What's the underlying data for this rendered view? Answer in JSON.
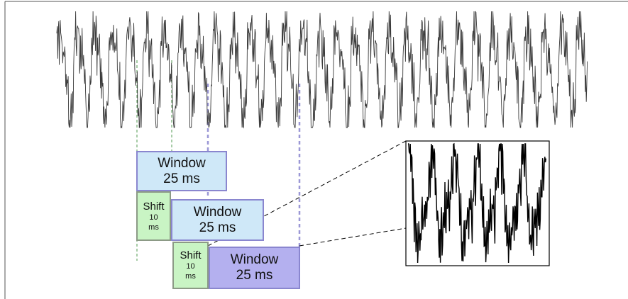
{
  "diagram": {
    "windows": [
      {
        "line1": "Window",
        "line2": "25 ms"
      },
      {
        "line1": "Window",
        "line2": "25 ms"
      },
      {
        "line1": "Window",
        "line2": "25 ms"
      }
    ],
    "shifts": [
      {
        "line1": "Shift",
        "line2": "10",
        "line3": "ms"
      },
      {
        "line1": "Shift",
        "line2": "10",
        "line3": "ms"
      }
    ],
    "colors": {
      "waveform": "#3a3a3a",
      "zoom_waveform": "#000000",
      "window_light": "#cfe8f8",
      "window_dark": "#b4b0ef",
      "window_border": "#8a86cf",
      "shift_fill": "#c9f4c4",
      "shift_border": "#8c9a86",
      "green_guide": "#4f9a4f",
      "blue_guide": "#9b97d6"
    }
  }
}
